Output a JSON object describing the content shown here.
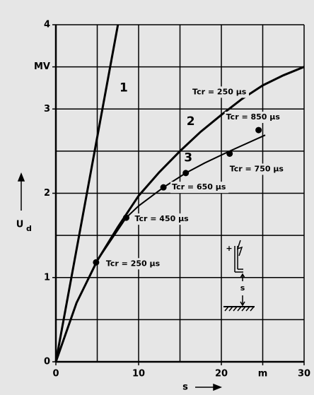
{
  "chart_data": {
    "type": "line",
    "xlabel": "s",
    "ylabel": "U",
    "ylabel_sub": "d",
    "xlim": [
      0,
      30
    ],
    "ylim": [
      0,
      4
    ],
    "xticks": [
      0,
      10,
      20,
      {
        "value": 25,
        "label": "m"
      },
      30
    ],
    "yticks": [
      0,
      1,
      2,
      3,
      {
        "value": 3.5,
        "label": "MV"
      },
      4
    ],
    "xgrid": [
      5,
      10,
      15,
      20,
      25,
      30
    ],
    "ygrid": [
      0.5,
      1,
      1.5,
      2,
      2.5,
      3,
      3.5,
      4
    ],
    "color": "#000000",
    "series": [
      {
        "label": "1",
        "width": 3,
        "x": [
          0,
          7.5
        ],
        "values": [
          0,
          4
        ],
        "label_at": [
          8.2,
          3.25
        ]
      },
      {
        "label": "2",
        "width": 3,
        "x": [
          0,
          2.5,
          5,
          7.5,
          10,
          12.5,
          15,
          17.5,
          20,
          22.5,
          25,
          27.5,
          30
        ],
        "values": [
          0,
          0.7,
          1.2,
          1.6,
          1.97,
          2.25,
          2.5,
          2.73,
          2.93,
          3.12,
          3.28,
          3.4,
          3.5
        ],
        "label_at": [
          16.3,
          2.85
        ]
      },
      {
        "label": "3",
        "width": 2,
        "x": [
          0,
          2.5,
          4.86,
          8.5,
          10,
          13,
          15.7,
          18,
          21,
          25.3
        ],
        "values": [
          0,
          0.7,
          1.18,
          1.71,
          1.85,
          2.07,
          2.24,
          2.36,
          2.5,
          2.69
        ],
        "label_at": [
          16,
          2.42
        ]
      }
    ],
    "points": [
      {
        "x": 4.86,
        "y": 1.18,
        "label": "Tcr = 250 µs"
      },
      {
        "x": 8.5,
        "y": 1.71,
        "label": "Tcr = 450 µs"
      },
      {
        "x": 13,
        "y": 2.07,
        "label": "Tcr = 650 µs"
      },
      {
        "x": 15.7,
        "y": 2.24
      },
      {
        "x": 21,
        "y": 2.47,
        "label": "Tcr = 750 µs"
      },
      {
        "x": 24.5,
        "y": 2.75,
        "label": "Tcr = 850 µs"
      }
    ],
    "annotations": [
      {
        "text": "Tcr = 250 µs",
        "x": 16.5,
        "y": 3.2
      }
    ],
    "inset": {
      "plus": "+",
      "label": "s"
    }
  }
}
